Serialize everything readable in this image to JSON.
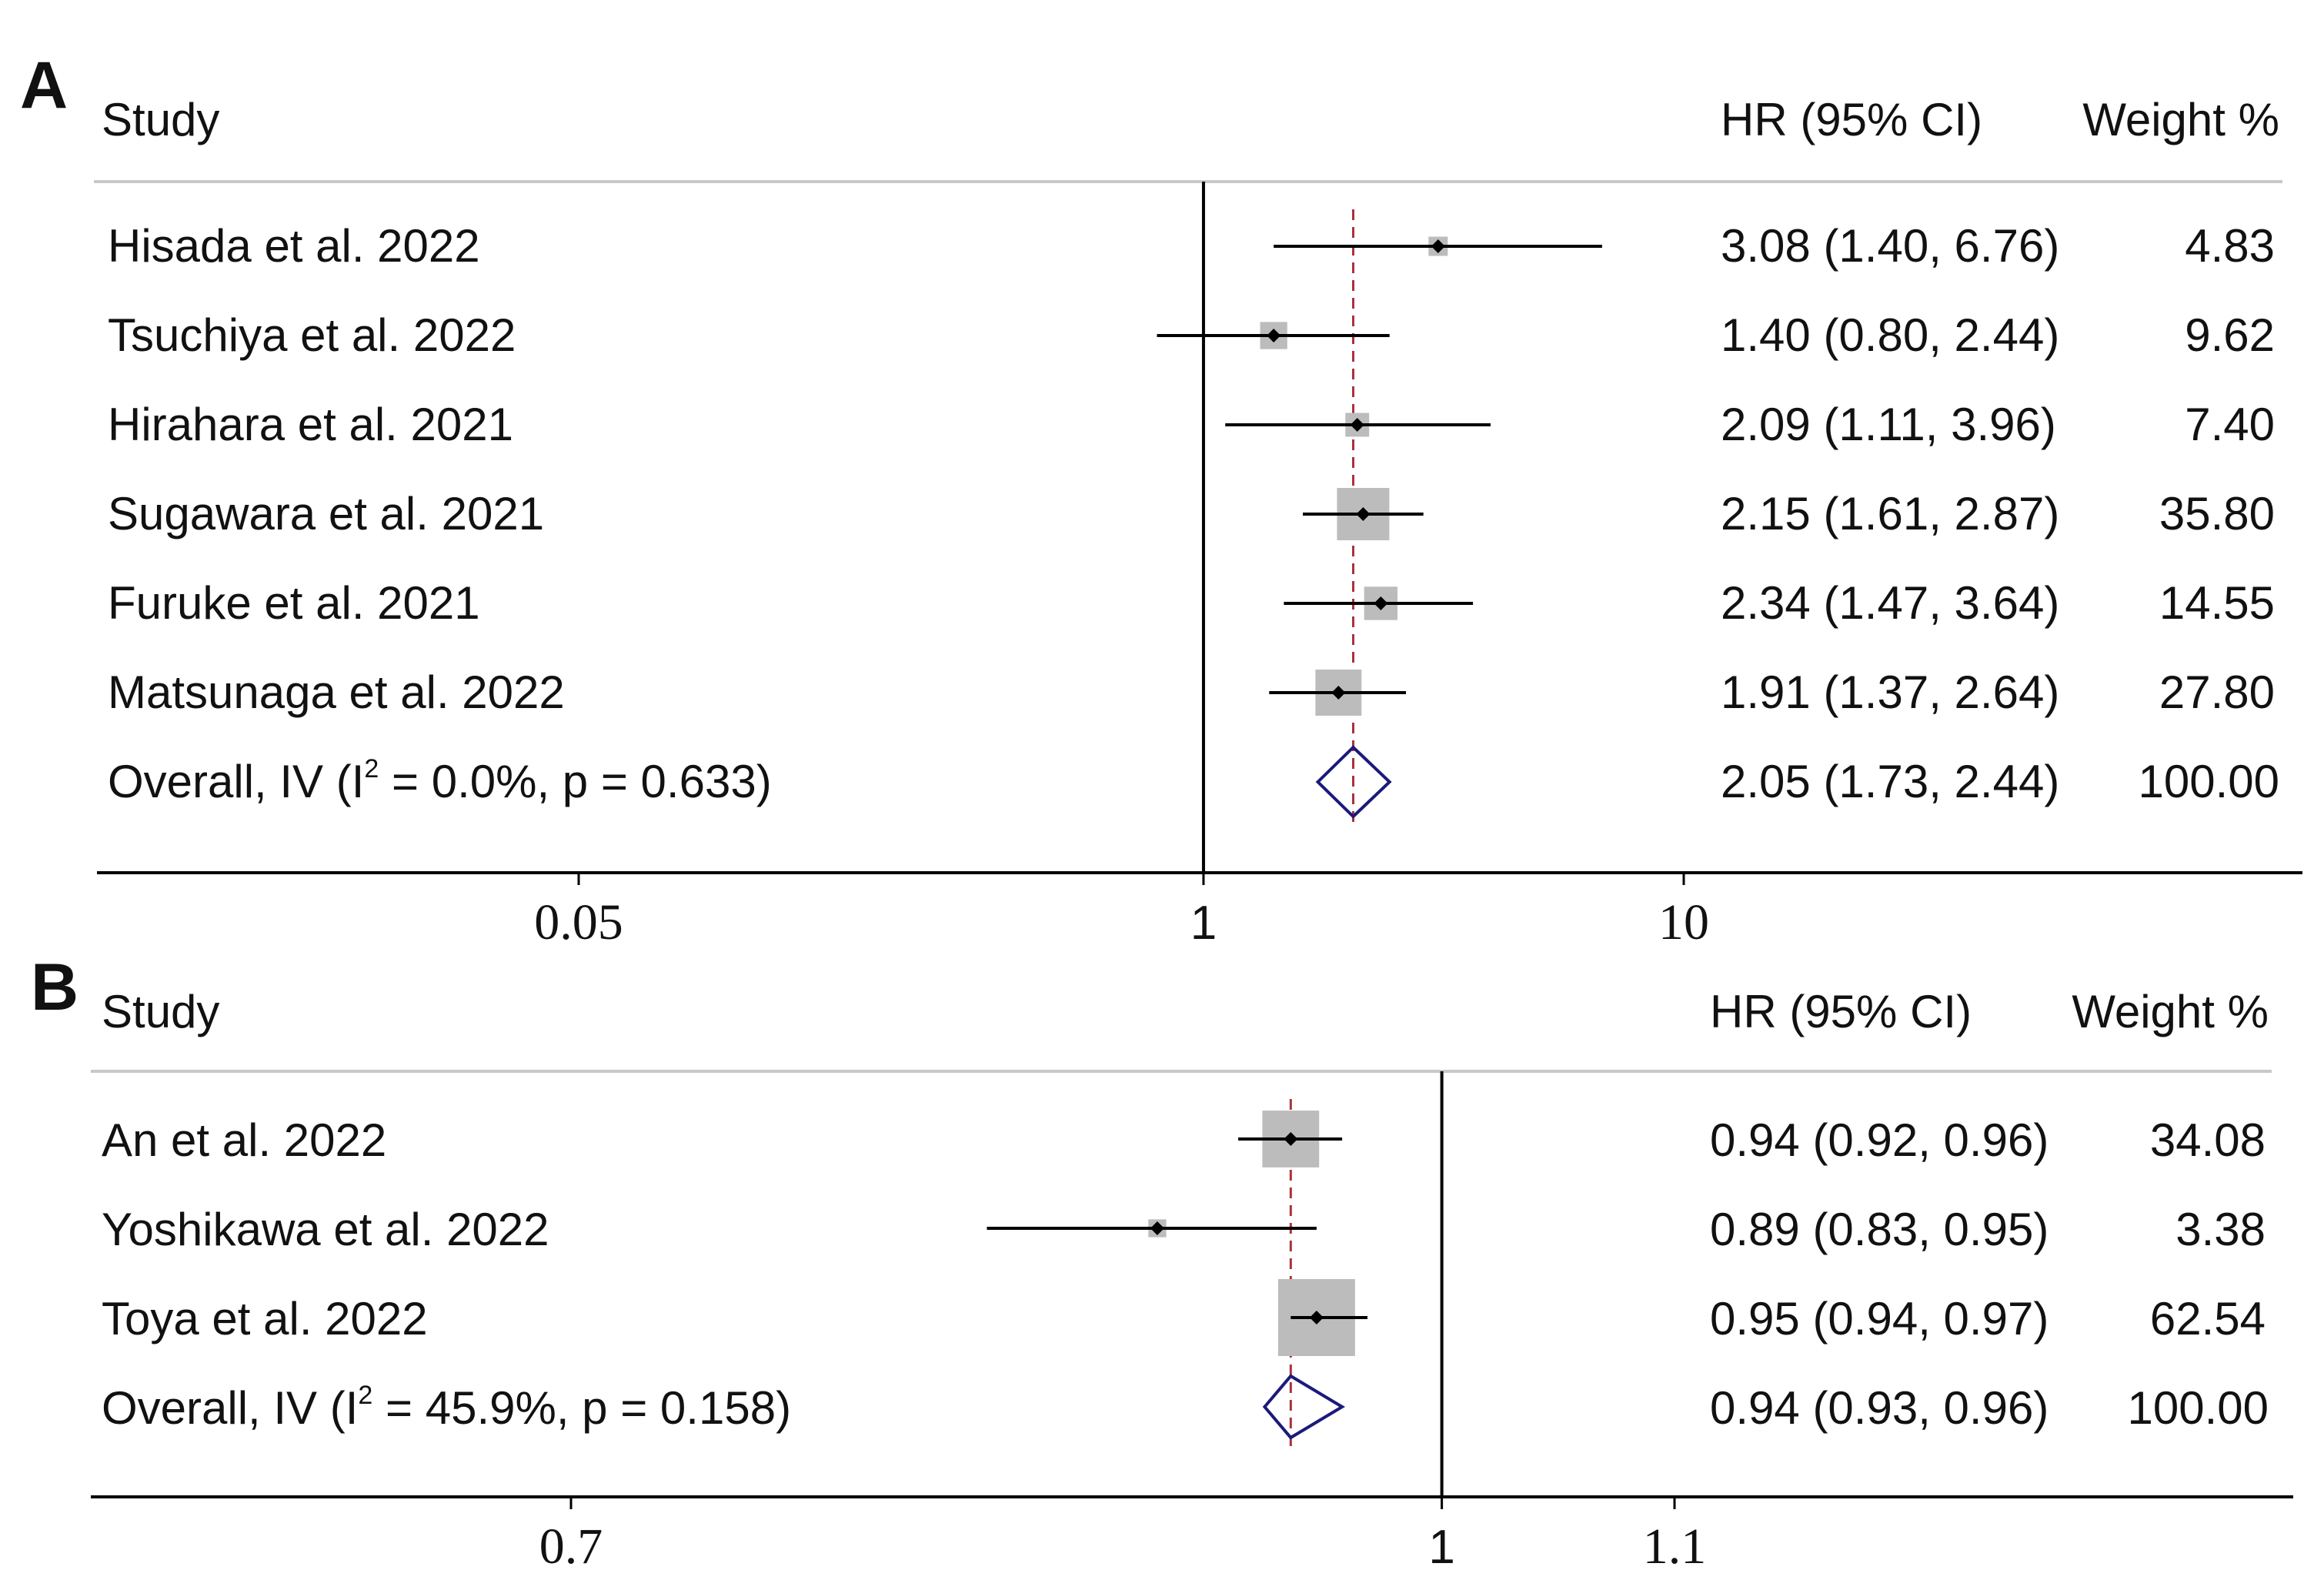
{
  "chart_data": [
    {
      "type": "forest",
      "panel_label": "A",
      "headers": {
        "study": "Study",
        "hr": "HR (95% CI)",
        "weight": "Weight %"
      },
      "scale": "log",
      "reference_line": 1,
      "pooled_estimate": 2.05,
      "x_ticks": [
        0.05,
        1,
        10
      ],
      "x_tick_labels": [
        "0.05",
        "1",
        "10"
      ],
      "studies": [
        {
          "name": "Hisada et al. 2022",
          "hr": 3.08,
          "lo": 1.4,
          "hi": 6.76,
          "hr_text": "3.08 (1.40, 6.76)",
          "weight": 4.83,
          "weight_text": "4.83"
        },
        {
          "name": "Tsuchiya et al. 2022",
          "hr": 1.4,
          "lo": 0.8,
          "hi": 2.44,
          "hr_text": "1.40 (0.80, 2.44)",
          "weight": 9.62,
          "weight_text": "9.62"
        },
        {
          "name": "Hirahara et al. 2021",
          "hr": 2.09,
          "lo": 1.11,
          "hi": 3.96,
          "hr_text": "2.09 (1.11, 3.96)",
          "weight": 7.4,
          "weight_text": "7.40"
        },
        {
          "name": "Sugawara et al. 2021",
          "hr": 2.15,
          "lo": 1.61,
          "hi": 2.87,
          "hr_text": "2.15 (1.61, 2.87)",
          "weight": 35.8,
          "weight_text": "35.80"
        },
        {
          "name": "Furuke et al. 2021",
          "hr": 2.34,
          "lo": 1.47,
          "hi": 3.64,
          "hr_text": "2.34 (1.47, 3.64)",
          "weight": 14.55,
          "weight_text": "14.55"
        },
        {
          "name": "Matsunaga et al. 2022",
          "hr": 1.91,
          "lo": 1.37,
          "hi": 2.64,
          "hr_text": "1.91 (1.37, 2.64)",
          "weight": 27.8,
          "weight_text": "27.80"
        }
      ],
      "overall": {
        "prefix": "Overall, IV (I",
        "sup": "2",
        "suffix": " = 0.0%, p = 0.633)",
        "hr": 2.05,
        "lo": 1.73,
        "hi": 2.44,
        "hr_text": "2.05 (1.73, 2.44)",
        "weight_text": "100.00"
      }
    },
    {
      "type": "forest",
      "panel_label": "B",
      "headers": {
        "study": "Study",
        "hr": "HR (95% CI)",
        "weight": "Weight %"
      },
      "scale": "log",
      "reference_line": 1,
      "pooled_estimate": 0.94,
      "x_ticks": [
        0.7,
        1,
        1.1
      ],
      "x_tick_labels": [
        "0.7",
        "1",
        "1.1"
      ],
      "studies": [
        {
          "name": "An et al. 2022",
          "hr": 0.94,
          "lo": 0.92,
          "hi": 0.96,
          "hr_text": "0.94 (0.92, 0.96)",
          "weight": 34.08,
          "weight_text": "34.08"
        },
        {
          "name": "Yoshikawa et al. 2022",
          "hr": 0.89,
          "lo": 0.83,
          "hi": 0.95,
          "hr_text": "0.89 (0.83, 0.95)",
          "weight": 3.38,
          "weight_text": "3.38"
        },
        {
          "name": "Toya et al. 2022",
          "hr": 0.95,
          "lo": 0.94,
          "hi": 0.97,
          "hr_text": "0.95 (0.94, 0.97)",
          "weight": 62.54,
          "weight_text": "62.54"
        }
      ],
      "overall": {
        "prefix": "Overall, IV (I",
        "sup": "2",
        "suffix": " = 45.9%, p = 0.158)",
        "hr": 0.94,
        "lo": 0.93,
        "hi": 0.96,
        "hr_text": "0.94 (0.93, 0.96)",
        "weight_text": "100.00"
      }
    }
  ],
  "colors": {
    "text": "#111111",
    "ci_line": "#000000",
    "weight_box": "#bcbcbc",
    "pooled_line": "#a8323c",
    "diamond": "#1b1a7a",
    "separator": "#c8c8c8",
    "axis": "#000000"
  }
}
